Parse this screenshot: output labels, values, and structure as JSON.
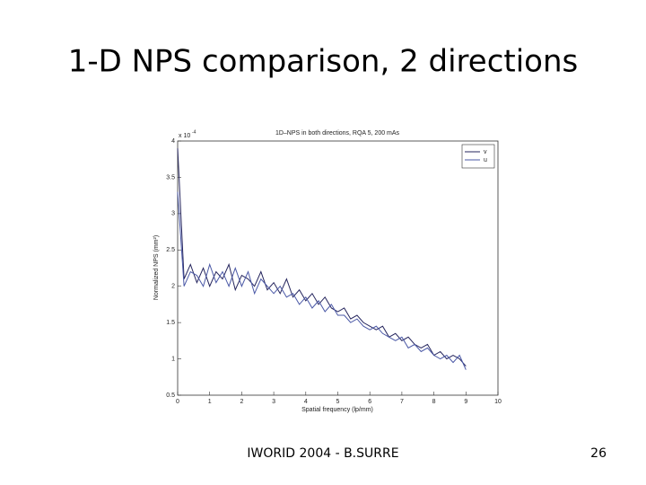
{
  "slide": {
    "title": "1-D NPS comparison, 2 directions",
    "footer": "IWORID 2004 - B.SURRE",
    "page_number": "26"
  },
  "chart_data": {
    "type": "line",
    "title": "1D–NPS in both directions, RQA 5, 200 mAs",
    "x_label": "Spatial frequency (lp/mm)",
    "y_label": "Normalized NPS (mm²)",
    "y_multiplier": "x 10",
    "y_multiplier_exponent": "-4",
    "x": [
      0,
      0.2,
      0.4,
      0.6,
      0.8,
      1,
      1.2,
      1.4,
      1.6,
      1.8,
      2,
      2.2,
      2.4,
      2.6,
      2.8,
      3,
      3.2,
      3.4,
      3.6,
      3.8,
      4,
      4.2,
      4.4,
      4.6,
      4.8,
      5,
      5.2,
      5.4,
      5.6,
      5.8,
      6,
      6.2,
      6.4,
      6.6,
      6.8,
      7,
      7.2,
      7.4,
      7.6,
      7.8,
      8,
      8.2,
      8.4,
      8.6,
      8.8,
      9
    ],
    "series": [
      {
        "name": "v",
        "color": "#26265e",
        "values": [
          3.9,
          2.1,
          2.3,
          2.05,
          2.25,
          2.0,
          2.2,
          2.1,
          2.3,
          1.95,
          2.15,
          2.1,
          2.0,
          2.2,
          1.95,
          2.05,
          1.9,
          2.1,
          1.85,
          1.95,
          1.8,
          1.9,
          1.75,
          1.85,
          1.7,
          1.65,
          1.7,
          1.55,
          1.6,
          1.5,
          1.45,
          1.4,
          1.45,
          1.3,
          1.35,
          1.25,
          1.3,
          1.2,
          1.15,
          1.2,
          1.05,
          1.1,
          1.0,
          1.05,
          1.0,
          0.9
        ]
      },
      {
        "name": "u",
        "color": "#4a58a6",
        "values": [
          3.3,
          2.0,
          2.2,
          2.15,
          2.0,
          2.3,
          2.05,
          2.2,
          2.0,
          2.25,
          2.0,
          2.2,
          1.9,
          2.1,
          2.0,
          1.9,
          2.0,
          1.85,
          1.9,
          1.75,
          1.85,
          1.7,
          1.8,
          1.65,
          1.75,
          1.6,
          1.6,
          1.5,
          1.55,
          1.45,
          1.4,
          1.45,
          1.35,
          1.3,
          1.25,
          1.3,
          1.15,
          1.2,
          1.1,
          1.15,
          1.05,
          1.0,
          1.05,
          0.95,
          1.05,
          0.85
        ]
      }
    ],
    "xlim": [
      0,
      10
    ],
    "xticks": [
      0,
      1,
      2,
      3,
      4,
      5,
      6,
      7,
      8,
      9,
      10
    ],
    "ylim": [
      0.5,
      4
    ],
    "yticks": [
      0.5,
      1,
      1.5,
      2,
      2.5,
      3,
      3.5,
      4
    ],
    "grid": false,
    "legend": "upper-right"
  }
}
